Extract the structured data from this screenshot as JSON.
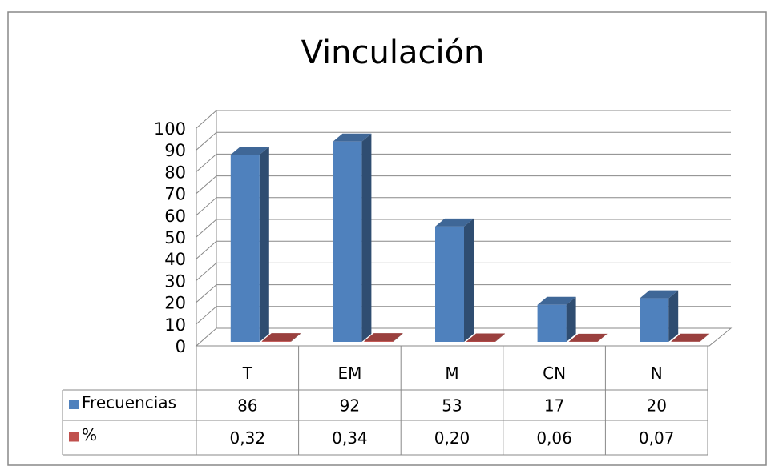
{
  "chart_data": {
    "type": "bar3d",
    "title": "Vinculación",
    "categories": [
      "T",
      "EM",
      "M",
      "CN",
      "N"
    ],
    "series": [
      {
        "name": "Frecuencias",
        "color": "#4f81bd",
        "values": [
          86,
          92,
          53,
          17,
          20
        ]
      },
      {
        "name": "%",
        "color": "#c0504d",
        "values": [
          0.32,
          0.34,
          0.2,
          0.06,
          0.07
        ],
        "value_labels": [
          "0,32",
          "0,34",
          "0,20",
          "0,06",
          "0,07"
        ]
      }
    ],
    "ylim": [
      0,
      100
    ],
    "yticks": [
      0,
      10,
      20,
      30,
      40,
      50,
      60,
      70,
      80,
      90,
      100
    ],
    "grid": true
  }
}
